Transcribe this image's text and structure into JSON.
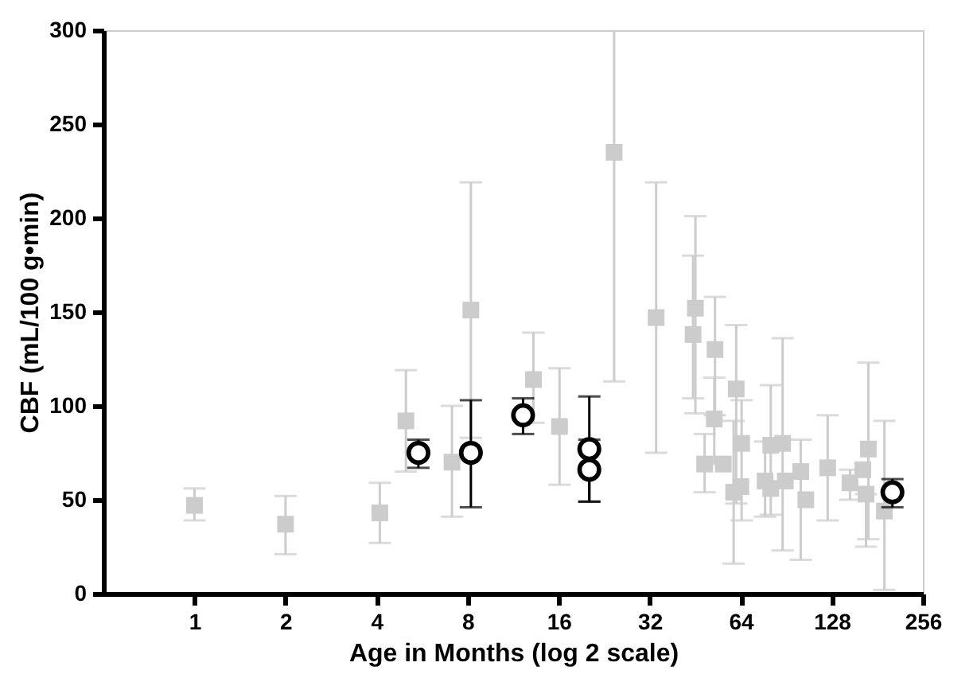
{
  "chart_data": {
    "type": "scatter",
    "xlabel": "Age in Months (log 2 scale)",
    "ylabel": "CBF (mL/100 g•min)",
    "log": "x",
    "xlim": [
      0.5,
      256
    ],
    "xticks": [
      1,
      2,
      4,
      8,
      16,
      32,
      64,
      128,
      256
    ],
    "ylim": [
      0,
      300
    ],
    "yticks": [
      0,
      50,
      100,
      150,
      200,
      250,
      300
    ],
    "grid": false,
    "series": [
      {
        "marker": "square",
        "color": "#cccccc",
        "x": [
          1.0,
          2.0,
          4.1,
          5.0,
          7.1,
          8.2,
          13.2,
          16.1,
          24.4,
          33.6,
          44.5,
          45.3,
          48.6,
          52.3,
          52.6,
          56,
          61.8,
          60.6,
          64.4,
          64,
          77,
          80.4,
          88,
          80.4,
          89.8,
          101,
          105,
          124,
          147,
          162,
          169,
          166,
          191
        ],
        "values": [
          47,
          37,
          43,
          92,
          70,
          151,
          114,
          89,
          235,
          147,
          138,
          152,
          69,
          93,
          130,
          69,
          109,
          54,
          80,
          57,
          60,
          79,
          80,
          56,
          60,
          65,
          50,
          67,
          59,
          66,
          77,
          53,
          44
        ],
        "errors": [
          [
            39,
            56
          ],
          [
            21,
            52
          ],
          [
            27,
            59
          ],
          [
            65,
            119
          ],
          [
            41,
            100
          ],
          [
            83,
            219
          ],
          [
            91,
            139
          ],
          [
            58,
            120
          ],
          [
            113,
            300
          ],
          [
            75,
            219
          ],
          [
            104,
            180
          ],
          [
            96,
            201
          ],
          [
            54,
            85
          ],
          [
            69,
            115
          ],
          [
            95,
            158
          ],
          null,
          [
            48,
            143
          ],
          [
            16,
            92
          ],
          [
            39,
            103
          ],
          null,
          [
            41,
            81
          ],
          [
            42,
            111
          ],
          [
            23,
            136
          ],
          null,
          null,
          [
            18,
            82
          ],
          null,
          [
            39,
            95
          ],
          [
            50,
            66
          ],
          null,
          [
            29,
            123
          ],
          [
            25,
            53
          ],
          [
            2,
            92
          ]
        ]
      },
      {
        "marker": "circle",
        "color": "#000000",
        "x": [
          5.5,
          8.2,
          12.2,
          20.2,
          20.2,
          203
        ],
        "values": [
          75,
          75,
          95,
          77,
          66,
          54
        ],
        "errors": [
          [
            67,
            82
          ],
          [
            46,
            103
          ],
          [
            85,
            104
          ],
          [
            49,
            105
          ],
          [
            49,
            82
          ],
          [
            46,
            61
          ]
        ]
      }
    ]
  }
}
